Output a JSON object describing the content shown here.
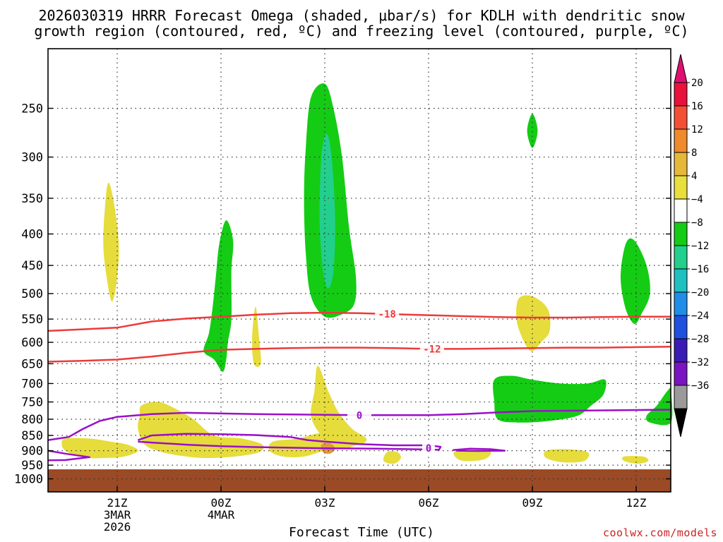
{
  "title_line1": "2026030319 HRRR Forecast Omega (shaded, μbar/s) for KDLH with dendritic snow",
  "title_line2": "growth region (contoured, red, ºC) and freezing level (contoured, purple, ºC)",
  "credit": "coolwx.com/models",
  "chart_data": {
    "type": "heatmap",
    "xlabel": "Forecast Time (UTC)",
    "x_ticks": [
      {
        "hour": 2,
        "lines": [
          "21Z",
          "3MAR",
          "2026"
        ]
      },
      {
        "hour": 5,
        "lines": [
          "00Z",
          "4MAR"
        ]
      },
      {
        "hour": 8,
        "lines": [
          "03Z"
        ]
      },
      {
        "hour": 11,
        "lines": [
          "06Z"
        ]
      },
      {
        "hour": 14,
        "lines": [
          "09Z"
        ]
      },
      {
        "hour": 17,
        "lines": [
          "12Z"
        ]
      }
    ],
    "xlim_hours": [
      0,
      18
    ],
    "y_scale": "log-pressure",
    "ylim_hPa": [
      1050,
      200
    ],
    "y_ticks": [
      250,
      300,
      350,
      400,
      450,
      500,
      550,
      600,
      650,
      700,
      750,
      800,
      850,
      900,
      950,
      1000
    ],
    "grid": "dotted",
    "surface_fill_from_hPa": 965,
    "surface_color": "#9b4a26",
    "colorbar": {
      "labels": [
        "20",
        "16",
        "12",
        "8",
        "4",
        "−4",
        "−8",
        "−12",
        "−16",
        "−20",
        "−24",
        "−28",
        "−32",
        "−36"
      ],
      "colors": [
        "#e8123c",
        "#f44f34",
        "#ef8a2d",
        "#e6b83a",
        "#e8de3c",
        "#ffffff",
        "#14cc14",
        "#22cf8c",
        "#20bfc0",
        "#1e8ee8",
        "#2050e0",
        "#3a1cb4",
        "#7a14c0",
        "#9a9a9a"
      ],
      "top_arrow_color": "#e01070",
      "bottom_arrow_color": "#000000"
    },
    "shaded_regions": [
      {
        "color": "#e6dc3c",
        "omega": "4 to 8",
        "pts": [
          [
            1.75,
            330
          ],
          [
            1.92,
            360
          ],
          [
            2.05,
            420
          ],
          [
            1.98,
            480
          ],
          [
            1.85,
            515
          ],
          [
            1.72,
            480
          ],
          [
            1.6,
            420
          ],
          [
            1.65,
            360
          ]
        ]
      },
      {
        "color": "#e6dc3c",
        "omega": "4 to 8",
        "pts": [
          [
            6.0,
            525
          ],
          [
            6.1,
            590
          ],
          [
            6.15,
            650
          ],
          [
            5.95,
            650
          ],
          [
            5.9,
            590
          ]
        ]
      },
      {
        "color": "#e6dc3c",
        "omega": "4 to 8",
        "pts": [
          [
            7.8,
            655
          ],
          [
            8.1,
            720
          ],
          [
            8.4,
            780
          ],
          [
            8.8,
            830
          ],
          [
            9.2,
            860
          ],
          [
            9.0,
            880
          ],
          [
            8.3,
            880
          ],
          [
            7.9,
            850
          ],
          [
            7.6,
            790
          ],
          [
            7.7,
            720
          ]
        ]
      },
      {
        "color": "#e6dc3c",
        "omega": "4 to 8",
        "pts": [
          [
            0.5,
            860
          ],
          [
            1.2,
            860
          ],
          [
            1.8,
            870
          ],
          [
            2.3,
            880
          ],
          [
            2.6,
            900
          ],
          [
            2.2,
            920
          ],
          [
            1.6,
            925
          ],
          [
            1.2,
            925
          ],
          [
            0.8,
            915
          ],
          [
            0.5,
            900
          ],
          [
            0.4,
            880
          ]
        ]
      },
      {
        "color": "#e6dc3c",
        "omega": "4 to 8",
        "pts": [
          [
            2.7,
            760
          ],
          [
            3.2,
            750
          ],
          [
            3.7,
            770
          ],
          [
            4.2,
            800
          ],
          [
            4.8,
            850
          ],
          [
            5.6,
            860
          ],
          [
            6.2,
            880
          ],
          [
            6.1,
            905
          ],
          [
            5.4,
            920
          ],
          [
            4.6,
            925
          ],
          [
            4.0,
            920
          ],
          [
            3.3,
            905
          ],
          [
            2.8,
            880
          ],
          [
            2.6,
            830
          ],
          [
            2.65,
            790
          ]
        ]
      },
      {
        "color": "#e6dc3c",
        "omega": "4 to 8",
        "pts": [
          [
            6.5,
            870
          ],
          [
            7.2,
            860
          ],
          [
            8.0,
            840
          ],
          [
            8.6,
            850
          ],
          [
            9.0,
            870
          ],
          [
            8.7,
            890
          ],
          [
            8.0,
            900
          ],
          [
            7.4,
            920
          ],
          [
            6.8,
            920
          ],
          [
            6.4,
            900
          ]
        ]
      },
      {
        "color": "#e09a3a",
        "omega": "8 to 12",
        "pts": [
          [
            7.9,
            880
          ],
          [
            8.15,
            875
          ],
          [
            8.3,
            893
          ],
          [
            8.15,
            910
          ],
          [
            7.95,
            905
          ]
        ]
      },
      {
        "color": "#e6dc3c",
        "omega": "4 to 8",
        "pts": [
          [
            9.8,
            905
          ],
          [
            10.1,
            905
          ],
          [
            10.2,
            925
          ],
          [
            10.0,
            945
          ],
          [
            9.7,
            935
          ]
        ]
      },
      {
        "color": "#e6dc3c",
        "omega": "4 to 8",
        "pts": [
          [
            11.8,
            900
          ],
          [
            12.4,
            895
          ],
          [
            12.8,
            905
          ],
          [
            12.6,
            930
          ],
          [
            12.0,
            935
          ],
          [
            11.75,
            918
          ]
        ]
      },
      {
        "color": "#e6dc3c",
        "omega": "4 to 8",
        "pts": [
          [
            13.6,
            510
          ],
          [
            14.0,
            505
          ],
          [
            14.45,
            530
          ],
          [
            14.5,
            575
          ],
          [
            14.25,
            600
          ],
          [
            14.0,
            620
          ],
          [
            13.8,
            605
          ],
          [
            13.55,
            555
          ]
        ]
      },
      {
        "color": "#e6dc3c",
        "omega": "4 to 8",
        "pts": [
          [
            14.4,
            900
          ],
          [
            15.0,
            895
          ],
          [
            15.6,
            905
          ],
          [
            15.5,
            935
          ],
          [
            14.9,
            940
          ],
          [
            14.4,
            925
          ]
        ]
      },
      {
        "color": "#e6dc3c",
        "omega": "4 to 8",
        "pts": [
          [
            16.65,
            920
          ],
          [
            17.2,
            920
          ],
          [
            17.35,
            935
          ],
          [
            17.05,
            945
          ],
          [
            16.65,
            935
          ]
        ]
      },
      {
        "color": "#14cc14",
        "omega": "-4 to -8",
        "pts": [
          [
            4.95,
            415
          ],
          [
            5.15,
            380
          ],
          [
            5.35,
            410
          ],
          [
            5.3,
            460
          ],
          [
            5.3,
            550
          ],
          [
            5.2,
            600
          ],
          [
            5.15,
            640
          ],
          [
            5.05,
            670
          ],
          [
            4.8,
            640
          ],
          [
            4.5,
            620
          ],
          [
            4.65,
            580
          ],
          [
            4.75,
            530
          ],
          [
            4.85,
            470
          ]
        ]
      },
      {
        "color": "#14cc14",
        "omega": "-4 to -8",
        "pts": [
          [
            7.6,
            240
          ],
          [
            8.0,
            228
          ],
          [
            8.25,
            250
          ],
          [
            8.5,
            300
          ],
          [
            8.7,
            390
          ],
          [
            8.9,
            470
          ],
          [
            8.85,
            520
          ],
          [
            8.5,
            540
          ],
          [
            8.0,
            545
          ],
          [
            7.6,
            505
          ],
          [
            7.45,
            430
          ],
          [
            7.4,
            350
          ],
          [
            7.45,
            290
          ]
        ]
      },
      {
        "color": "#22cf8c",
        "omega": "-8 to -12",
        "pts": [
          [
            8.05,
            275
          ],
          [
            8.2,
            300
          ],
          [
            8.3,
            380
          ],
          [
            8.25,
            460
          ],
          [
            8.1,
            490
          ],
          [
            7.95,
            460
          ],
          [
            7.85,
            380
          ],
          [
            7.9,
            300
          ]
        ]
      },
      {
        "color": "#14cc14",
        "omega": "-4 to -8",
        "pts": [
          [
            14.0,
            255
          ],
          [
            14.15,
            272
          ],
          [
            14.0,
            290
          ],
          [
            13.85,
            272
          ]
        ]
      },
      {
        "color": "#14cc14",
        "omega": "-4 to -8",
        "pts": [
          [
            16.7,
            415
          ],
          [
            16.95,
            410
          ],
          [
            17.3,
            450
          ],
          [
            17.4,
            500
          ],
          [
            17.15,
            540
          ],
          [
            16.95,
            560
          ],
          [
            16.7,
            530
          ],
          [
            16.55,
            470
          ]
        ]
      },
      {
        "color": "#14cc14",
        "omega": "-4 to -8",
        "pts": [
          [
            12.9,
            690
          ],
          [
            13.4,
            680
          ],
          [
            14.0,
            690
          ],
          [
            14.8,
            700
          ],
          [
            15.6,
            700
          ],
          [
            16.1,
            690
          ],
          [
            16.05,
            730
          ],
          [
            15.7,
            760
          ],
          [
            15.3,
            790
          ],
          [
            14.5,
            805
          ],
          [
            13.6,
            810
          ],
          [
            13.0,
            800
          ],
          [
            12.9,
            750
          ]
        ]
      },
      {
        "color": "#14cc14",
        "omega": "-4 to -8",
        "pts": [
          [
            17.9,
            720
          ],
          [
            18.0,
            720
          ],
          [
            18.0,
            810
          ],
          [
            17.4,
            810
          ],
          [
            17.3,
            790
          ],
          [
            17.6,
            760
          ]
        ]
      }
    ],
    "contours": [
      {
        "name": "-18",
        "color": "#ee3a3a",
        "label_at": 9.8,
        "points": [
          [
            0,
            575
          ],
          [
            2,
            568
          ],
          [
            3,
            555
          ],
          [
            4,
            549
          ],
          [
            5,
            545
          ],
          [
            6,
            541
          ],
          [
            7,
            538
          ],
          [
            8,
            537
          ],
          [
            9,
            538
          ],
          [
            10,
            540
          ],
          [
            11,
            542
          ],
          [
            12,
            544
          ],
          [
            13,
            546
          ],
          [
            14,
            547
          ],
          [
            15,
            547
          ],
          [
            16,
            546
          ],
          [
            17,
            545
          ],
          [
            18,
            545
          ]
        ]
      },
      {
        "name": "-12",
        "color": "#ee3a3a",
        "label_at": 11.1,
        "points": [
          [
            0,
            645
          ],
          [
            1,
            643
          ],
          [
            2,
            640
          ],
          [
            3,
            633
          ],
          [
            4,
            624
          ],
          [
            5,
            617
          ],
          [
            6,
            615
          ],
          [
            7,
            613
          ],
          [
            8,
            612
          ],
          [
            9,
            612
          ],
          [
            10,
            613
          ],
          [
            11,
            615
          ],
          [
            12,
            615
          ],
          [
            13,
            614
          ],
          [
            14,
            613
          ],
          [
            15,
            612
          ],
          [
            16,
            612
          ],
          [
            17,
            611
          ],
          [
            18,
            610
          ]
        ]
      },
      {
        "name": "0",
        "color": "#9a10c8",
        "label_at": 9.0,
        "points": [
          [
            0,
            865
          ],
          [
            0.6,
            855
          ],
          [
            1.0,
            830
          ],
          [
            1.5,
            805
          ],
          [
            2,
            793
          ],
          [
            3,
            785
          ],
          [
            4,
            781
          ],
          [
            5,
            783
          ],
          [
            6,
            785
          ],
          [
            7,
            786
          ],
          [
            8,
            787
          ],
          [
            9,
            788
          ],
          [
            10,
            788
          ],
          [
            11,
            788
          ],
          [
            12,
            785
          ],
          [
            13,
            780
          ],
          [
            14,
            776
          ],
          [
            15,
            775
          ],
          [
            16,
            774
          ],
          [
            17,
            773
          ],
          [
            18,
            772
          ]
        ]
      },
      {
        "name": "0",
        "color": "#9a10c8",
        "label_at": null,
        "points": [
          [
            2.6,
            865
          ],
          [
            3.0,
            850
          ],
          [
            4.0,
            845
          ],
          [
            5.0,
            846
          ],
          [
            6.0,
            849
          ],
          [
            7.0,
            855
          ],
          [
            7.5,
            865
          ],
          [
            8.0,
            870
          ],
          [
            9.0,
            878
          ],
          [
            10.0,
            882
          ],
          [
            11.0,
            882
          ],
          [
            11.35,
            887
          ],
          [
            11.3,
            897
          ],
          [
            11.0,
            896
          ],
          [
            9.5,
            893
          ],
          [
            8.0,
            892
          ],
          [
            7.0,
            890
          ],
          [
            6.0,
            888
          ],
          [
            5.0,
            885
          ],
          [
            4.0,
            880
          ],
          [
            3.0,
            873
          ],
          [
            2.6,
            870
          ]
        ]
      },
      {
        "name": "0",
        "color": "#9a10c8",
        "label_at": 11.0,
        "points": []
      },
      {
        "name": "",
        "color": "#9a10c8",
        "label_at": null,
        "points": [
          [
            11.7,
            898
          ],
          [
            12.2,
            893
          ],
          [
            12.8,
            895
          ],
          [
            13.2,
            900
          ],
          [
            12.4,
            901
          ],
          [
            11.8,
            900
          ]
        ]
      },
      {
        "name": "",
        "color": "#9a10c8",
        "label_at": null,
        "points": [
          [
            0,
            900
          ],
          [
            0.5,
            910
          ],
          [
            1.2,
            922
          ],
          [
            0.5,
            932
          ],
          [
            0,
            933
          ]
        ]
      }
    ]
  }
}
